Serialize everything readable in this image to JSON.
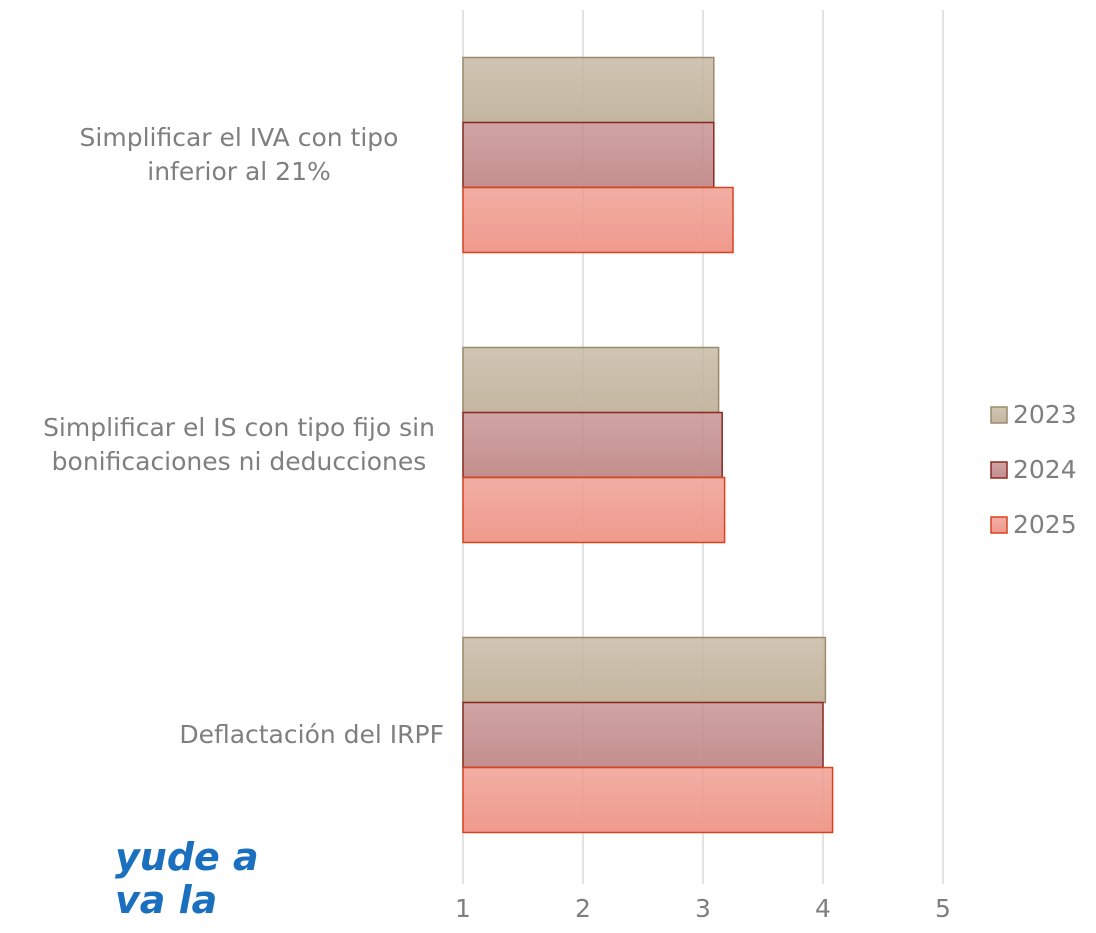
{
  "chart_data": {
    "type": "barh",
    "categories": [
      "Simplificar el IVA con tipo inferior al 21%",
      "Simplificar el IS con tipo fijo sin bonificaciones ni deducciones",
      "Deflactación del IRPF"
    ],
    "series": [
      {
        "name": "2023",
        "color": "#c4b6a0",
        "values": [
          3.09,
          3.13,
          4.02
        ]
      },
      {
        "name": "2024",
        "color": "#c48e8e",
        "values": [
          3.09,
          3.16,
          4.0
        ]
      },
      {
        "name": "2025",
        "color": "#ef9a8d",
        "values": [
          3.25,
          3.18,
          4.08
        ]
      }
    ],
    "xlim": [
      1,
      5
    ],
    "xticks": [
      1,
      2,
      3,
      4,
      5
    ],
    "grid": true,
    "legend": "right",
    "annotations": [
      "yude a",
      "va la"
    ]
  }
}
